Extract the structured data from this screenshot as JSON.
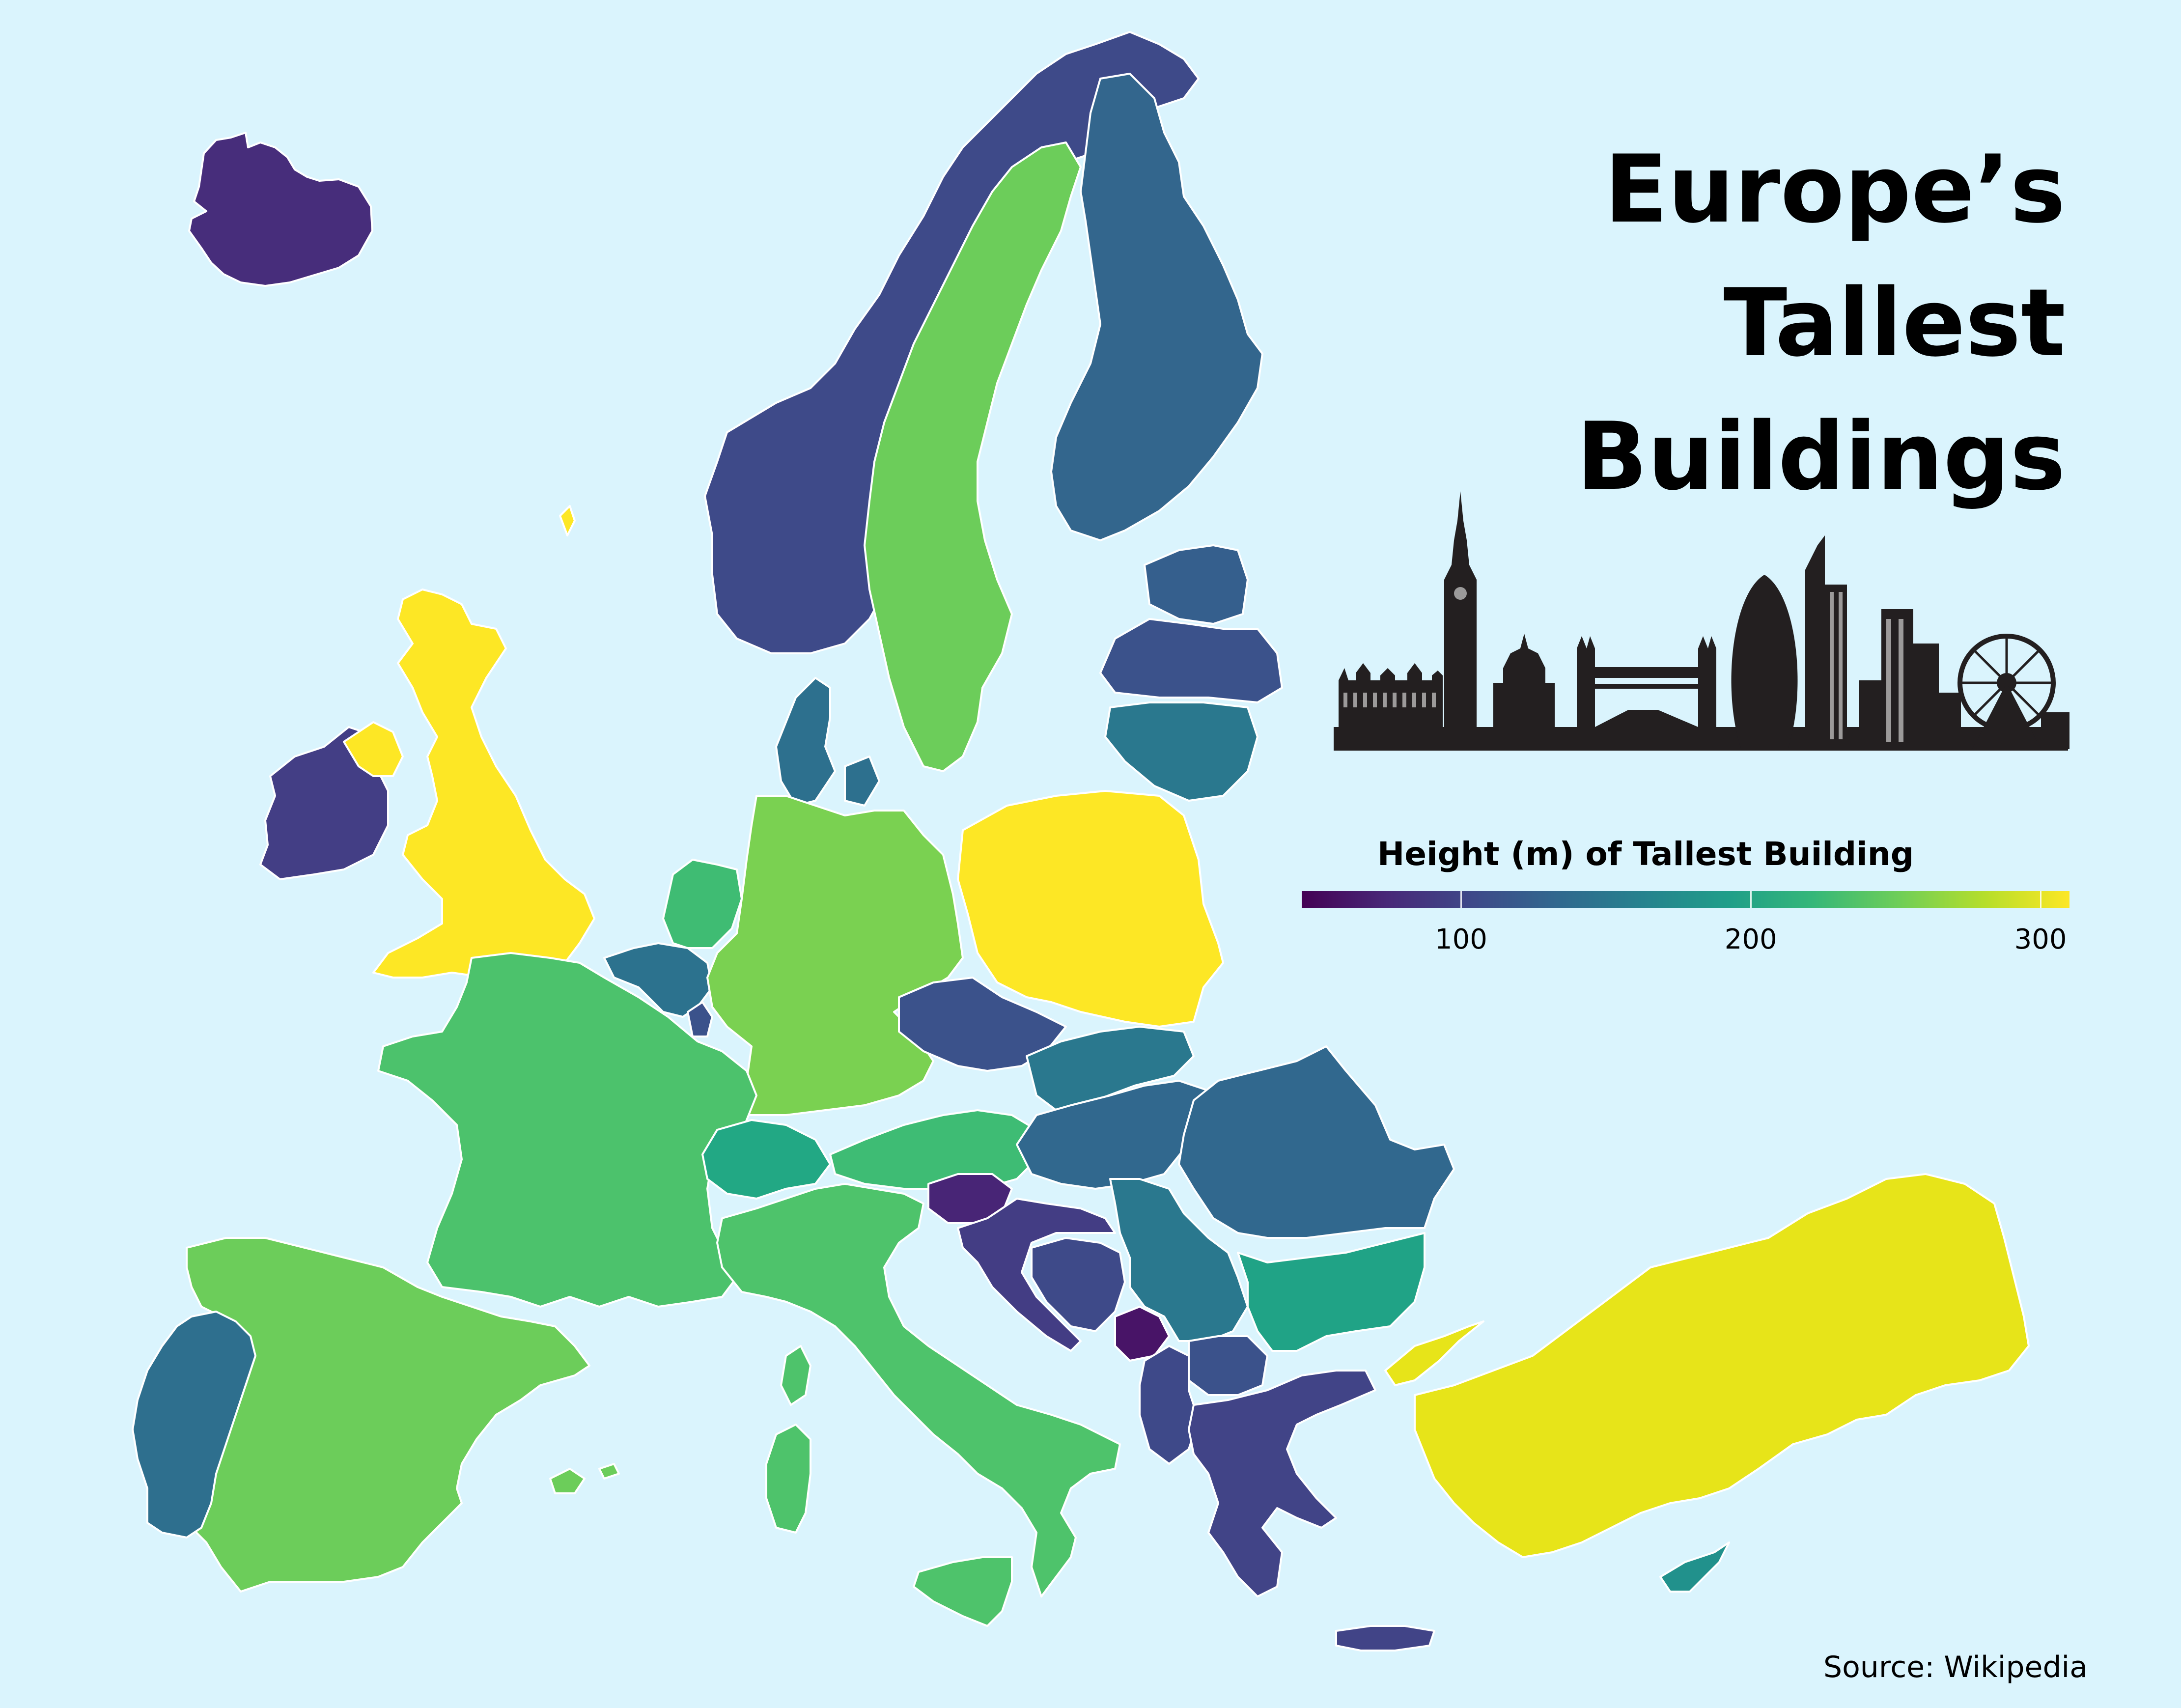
{
  "title_lines": [
    "Europe’s",
    "Tallest",
    "Buildings"
  ],
  "legend": {
    "title": "Height (m) of Tallest Building",
    "ticks": [
      "100",
      "200",
      "300"
    ],
    "scale_min": 45,
    "scale_max": 310,
    "colormap": "viridis"
  },
  "source": "Source: Wikipedia",
  "colors": {
    "background": "#daf4fd",
    "border": "#ffffff",
    "skyline": "#231f20",
    "viridis": [
      "#440154",
      "#482878",
      "#3e4989",
      "#31688e",
      "#26828e",
      "#1f9e89",
      "#35b779",
      "#6ece58",
      "#b5de2b",
      "#fde725"
    ]
  },
  "countries": [
    {
      "name": "Iceland",
      "fill": "#472d7b"
    },
    {
      "name": "Norway",
      "fill": "#3e4a89"
    },
    {
      "name": "Sweden",
      "fill": "#6ccd5a"
    },
    {
      "name": "Finland",
      "fill": "#33668d"
    },
    {
      "name": "Estonia",
      "fill": "#355f8d"
    },
    {
      "name": "Latvia",
      "fill": "#3b528b"
    },
    {
      "name": "Lithuania",
      "fill": "#2a788e"
    },
    {
      "name": "Denmark",
      "fill": "#2d708e"
    },
    {
      "name": "Ireland",
      "fill": "#433e85"
    },
    {
      "name": "Northern Ireland",
      "fill": "#fde725"
    },
    {
      "name": "United Kingdom",
      "fill": "#fde725"
    },
    {
      "name": "Netherlands",
      "fill": "#3fbc73"
    },
    {
      "name": "Belgium",
      "fill": "#2c728e"
    },
    {
      "name": "Luxembourg",
      "fill": "#3b528b"
    },
    {
      "name": "Germany",
      "fill": "#7ad151"
    },
    {
      "name": "Poland",
      "fill": "#fde725"
    },
    {
      "name": "Czechia",
      "fill": "#3b528b"
    },
    {
      "name": "France",
      "fill": "#4cc26c"
    },
    {
      "name": "Switzerland",
      "fill": "#22a884"
    },
    {
      "name": "Austria",
      "fill": "#3ebc74"
    },
    {
      "name": "Slovakia",
      "fill": "#2a788e"
    },
    {
      "name": "Hungary",
      "fill": "#31688e"
    },
    {
      "name": "Slovenia",
      "fill": "#482576"
    },
    {
      "name": "Croatia",
      "fill": "#433d84"
    },
    {
      "name": "Bosnia and Herzegovina",
      "fill": "#3e4a89"
    },
    {
      "name": "Serbia",
      "fill": "#2a788e"
    },
    {
      "name": "Montenegro",
      "fill": "#481467"
    },
    {
      "name": "North Macedonia",
      "fill": "#3b528b"
    },
    {
      "name": "Albania",
      "fill": "#3e4989"
    },
    {
      "name": "Romania",
      "fill": "#31688e"
    },
    {
      "name": "Bulgaria",
      "fill": "#20a386"
    },
    {
      "name": "Greece",
      "fill": "#414487"
    },
    {
      "name": "Italy",
      "fill": "#4ec36b"
    },
    {
      "name": "Sardinia",
      "fill": "#4ec36b"
    },
    {
      "name": "Sicily",
      "fill": "#4ec36b"
    },
    {
      "name": "Spain",
      "fill": "#6ccd5a"
    },
    {
      "name": "Balearic Islands",
      "fill": "#6ccd5a"
    },
    {
      "name": "Portugal",
      "fill": "#2e6f8e"
    },
    {
      "name": "Turkey",
      "fill": "#e7e419"
    },
    {
      "name": "Cyprus",
      "fill": "#21918c"
    },
    {
      "name": "Crete",
      "fill": "#414487"
    },
    {
      "name": "Corsica",
      "fill": "#4ec36b"
    },
    {
      "name": "Shetland",
      "fill": "#fde725"
    }
  ]
}
